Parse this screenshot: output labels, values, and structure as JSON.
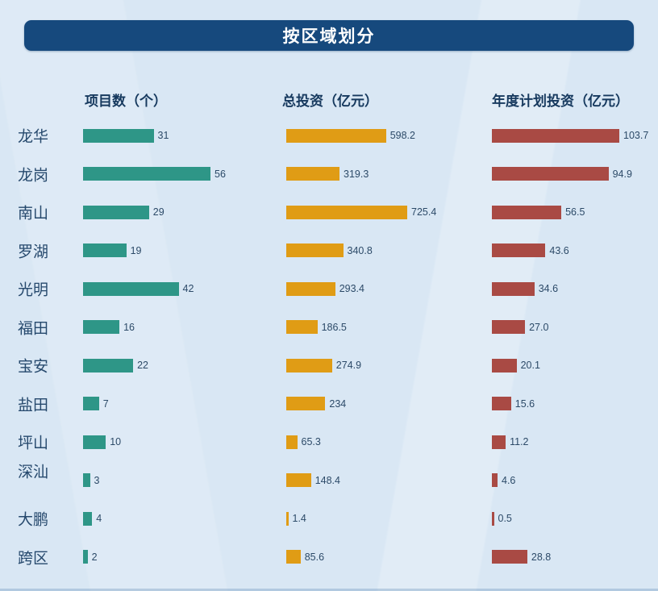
{
  "title": "按区域划分",
  "columns": [
    {
      "key": "projects",
      "label": "项目数（个）",
      "color": "#2e9687"
    },
    {
      "key": "total_investment",
      "label": "总投资（亿元）",
      "color": "#e09c15"
    },
    {
      "key": "annual_investment",
      "label": "年度计划投资（亿元）",
      "color": "#a94a44"
    }
  ],
  "rows": [
    {
      "region": "龙华",
      "projects": "31",
      "total_investment": "598.2",
      "annual_investment": "103.7"
    },
    {
      "region": "龙岗",
      "projects": "56",
      "total_investment": "319.3",
      "annual_investment": "94.9"
    },
    {
      "region": "南山",
      "projects": "29",
      "total_investment": "725.4",
      "annual_investment": "56.5"
    },
    {
      "region": "罗湖",
      "projects": "19",
      "total_investment": "340.8",
      "annual_investment": "43.6"
    },
    {
      "region": "光明",
      "projects": "42",
      "total_investment": "293.4",
      "annual_investment": "34.6"
    },
    {
      "region": "福田",
      "projects": "16",
      "total_investment": "186.5",
      "annual_investment": "27.0"
    },
    {
      "region": "宝安",
      "projects": "22",
      "total_investment": "274.9",
      "annual_investment": "20.1"
    },
    {
      "region": "盐田",
      "projects": "7",
      "total_investment": "234",
      "annual_investment": "15.6"
    },
    {
      "region": "坪山",
      "projects": "10",
      "total_investment": "65.3",
      "annual_investment": "11.2"
    },
    {
      "region": "深汕",
      "projects": "3",
      "total_investment": "148.4",
      "annual_investment": "4.6",
      "label_dy": -12
    },
    {
      "region": "大鹏",
      "projects": "4",
      "total_investment": "1.4",
      "annual_investment": "0.5"
    },
    {
      "region": "跨区",
      "projects": "2",
      "total_investment": "85.6",
      "annual_investment": "28.8"
    }
  ],
  "chart_data": {
    "type": "bar",
    "orientation": "horizontal",
    "title": "按区域划分",
    "categories": [
      "龙华",
      "龙岗",
      "南山",
      "罗湖",
      "光明",
      "福田",
      "宝安",
      "盐田",
      "坪山",
      "深汕",
      "大鹏",
      "跨区"
    ],
    "series": [
      {
        "name": "项目数（个）",
        "color": "#2e9687",
        "values": [
          31,
          56,
          29,
          19,
          42,
          16,
          22,
          7,
          10,
          3,
          4,
          2
        ]
      },
      {
        "name": "总投资（亿元）",
        "color": "#e09c15",
        "values": [
          598.2,
          319.3,
          725.4,
          340.8,
          293.4,
          186.5,
          274.9,
          234,
          65.3,
          148.4,
          1.4,
          85.6
        ]
      },
      {
        "name": "年度计划投资（亿元）",
        "color": "#a94a44",
        "values": [
          103.7,
          94.9,
          56.5,
          43.6,
          34.6,
          27.0,
          20.1,
          15.6,
          11.2,
          4.6,
          0.5,
          28.8
        ]
      }
    ],
    "value_labels": true,
    "axes_visible": false,
    "legend_position": "none",
    "panel_background": "#d9e7f4",
    "title_bar_background": "#16497d"
  }
}
